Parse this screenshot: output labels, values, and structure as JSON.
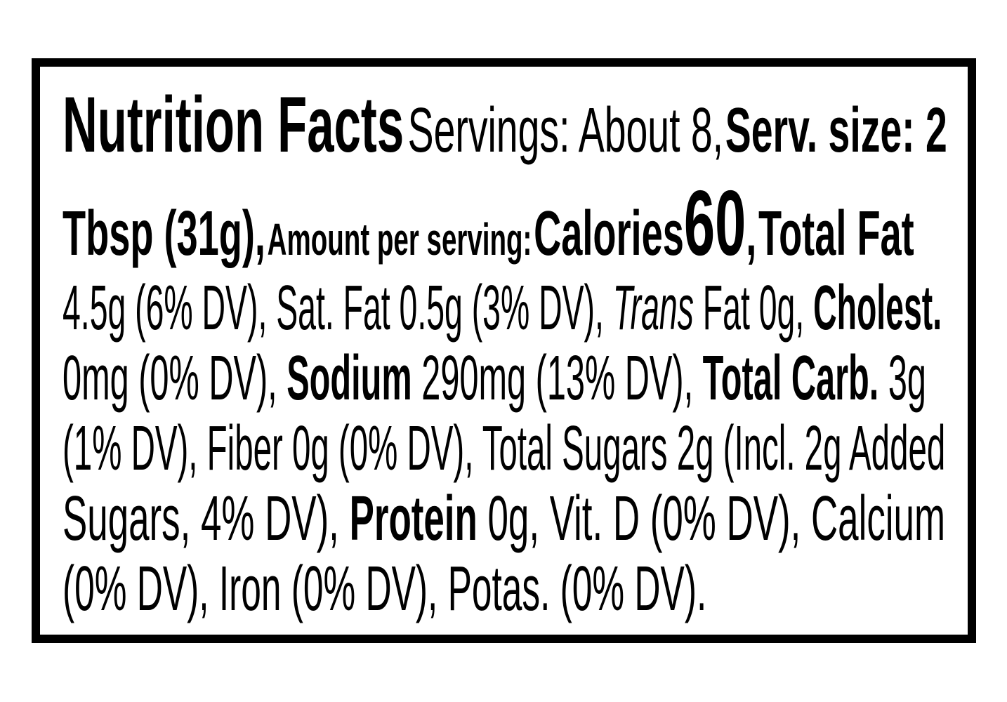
{
  "label": {
    "title": "Nutrition Facts",
    "servings": "Servings: About 8,",
    "serving_size_label": "Serv. size: 2",
    "serving_size_cont": "Tbsp (31g),",
    "amount_per_serving": "Amount per serving:",
    "calories_label": "Calories",
    "calories_value": "60",
    "line3": {
      "comma": ",",
      "total_fat_label": "Total Fat",
      "total_fat_value": "4.5g (6% DV), Sat. Fat 0.5g (3% DV),",
      "trans": "Trans",
      "trans_rest": "Fat 0g,",
      "cholest_label": "Cholest."
    },
    "line4": {
      "cholest_value": "0mg (0% DV),",
      "sodium_label": "Sodium",
      "sodium_value": "290mg (13% DV),",
      "carb_label": "Total Carb.",
      "carb_value": "3g"
    },
    "line5": "(1% DV), Fiber 0g (0% DV), Total Sugars 2g (Incl. 2g Added",
    "line6": {
      "pre": "Sugars, 4% DV),",
      "protein_label": "Protein",
      "post": "0g, Vit. D (0% DV), Calcium"
    },
    "line7": "(0% DV), Iron (0% DV), Potas. (0% DV)."
  }
}
